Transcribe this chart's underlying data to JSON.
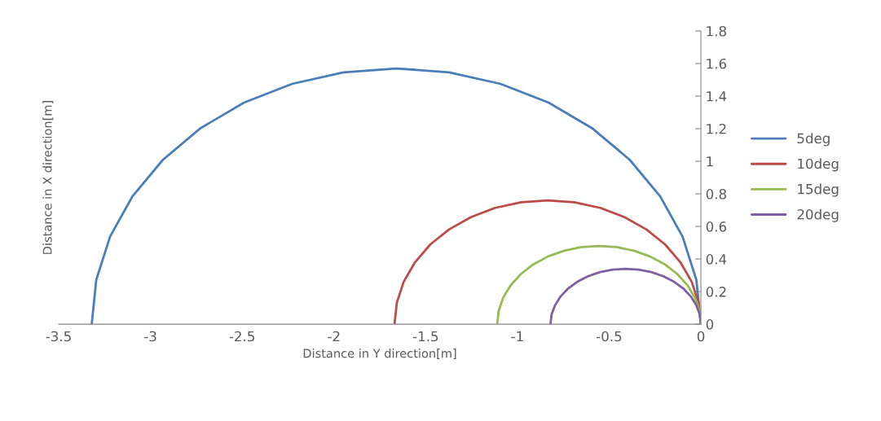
{
  "chart_data": {
    "type": "line",
    "xlabel": "Distance in Y direction[m]",
    "ylabel": "Distance in X direction[m]",
    "xlim": [
      -3.5,
      0
    ],
    "xticks": [
      -3.5,
      -3,
      -2.5,
      -2,
      -1.5,
      -1,
      -0.5,
      0
    ],
    "ylim": [
      0,
      1.8
    ],
    "yticks": [
      0,
      0.2,
      0.4,
      0.6,
      0.8,
      1,
      1.2,
      1.4,
      1.6,
      1.8
    ],
    "grid": false,
    "legend": "right",
    "marker": "none",
    "line_style": "solid",
    "series": [
      {
        "name": "5deg",
        "color": "#4a7ebb",
        "x": [
          0,
          -0.025,
          -0.1,
          -0.222,
          -0.388,
          -0.593,
          -0.83,
          -1.092,
          -1.372,
          -1.66,
          -1.948,
          -2.228,
          -2.49,
          -2.727,
          -2.932,
          -3.098,
          -3.22,
          -3.295,
          -3.32
        ],
        "values": [
          0,
          0.273,
          0.537,
          0.785,
          1.009,
          1.203,
          1.36,
          1.475,
          1.546,
          1.57,
          1.546,
          1.475,
          1.36,
          1.203,
          1.009,
          0.785,
          0.537,
          0.273,
          0
        ]
      },
      {
        "name": "10deg",
        "color": "#be4b48",
        "x": [
          0,
          -0.013,
          -0.05,
          -0.112,
          -0.195,
          -0.298,
          -0.418,
          -0.549,
          -0.69,
          -0.835,
          -0.98,
          -1.121,
          -1.252,
          -1.372,
          -1.475,
          -1.558,
          -1.62,
          -1.657,
          -1.67
        ],
        "values": [
          0,
          0.132,
          0.26,
          0.38,
          0.489,
          0.582,
          0.658,
          0.714,
          0.748,
          0.76,
          0.748,
          0.714,
          0.658,
          0.582,
          0.489,
          0.38,
          0.26,
          0.132,
          0
        ]
      },
      {
        "name": "15deg",
        "color": "#98b954",
        "x": [
          0,
          -0.008,
          -0.033,
          -0.074,
          -0.13,
          -0.198,
          -0.278,
          -0.365,
          -0.459,
          -0.555,
          -0.651,
          -0.745,
          -0.833,
          -0.912,
          -0.98,
          -1.036,
          -1.077,
          -1.102,
          -1.11
        ],
        "values": [
          0,
          0.083,
          0.164,
          0.24,
          0.309,
          0.368,
          0.416,
          0.451,
          0.473,
          0.48,
          0.473,
          0.451,
          0.416,
          0.368,
          0.309,
          0.24,
          0.164,
          0.083,
          0
        ]
      },
      {
        "name": "20deg",
        "color": "#7d60a0",
        "x": [
          0,
          -0.006,
          -0.025,
          -0.055,
          -0.096,
          -0.146,
          -0.205,
          -0.27,
          -0.339,
          -0.41,
          -0.481,
          -0.55,
          -0.615,
          -0.674,
          -0.724,
          -0.765,
          -0.795,
          -0.814,
          -0.82
        ],
        "values": [
          0,
          0.059,
          0.116,
          0.17,
          0.219,
          0.26,
          0.294,
          0.32,
          0.335,
          0.34,
          0.335,
          0.32,
          0.294,
          0.26,
          0.219,
          0.17,
          0.116,
          0.059,
          0
        ]
      }
    ]
  }
}
